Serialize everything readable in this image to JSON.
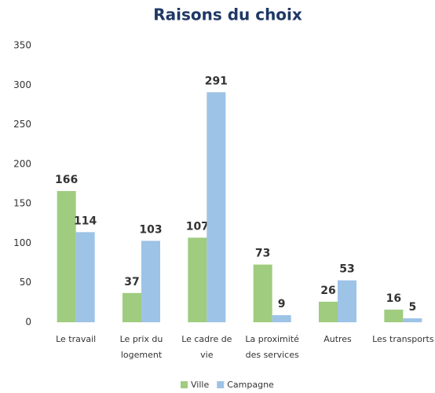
{
  "chart_data": {
    "type": "bar",
    "title": "Raisons du choix",
    "categories": [
      "Le travail",
      "Le prix du logement",
      "Le cadre de vie",
      "La proximité des services",
      "Autres",
      "Les transports"
    ],
    "series": [
      {
        "name": "Ville",
        "color": "#9fcc7f",
        "values": [
          166,
          37,
          107,
          73,
          26,
          16
        ]
      },
      {
        "name": "Campagne",
        "color": "#9dc3e6",
        "values": [
          114,
          103,
          291,
          9,
          53,
          5
        ]
      }
    ],
    "ylim": [
      0,
      350
    ],
    "yticks": [
      0,
      50,
      100,
      150,
      200,
      250,
      300,
      350
    ],
    "grid": false,
    "legend": "bottom"
  }
}
